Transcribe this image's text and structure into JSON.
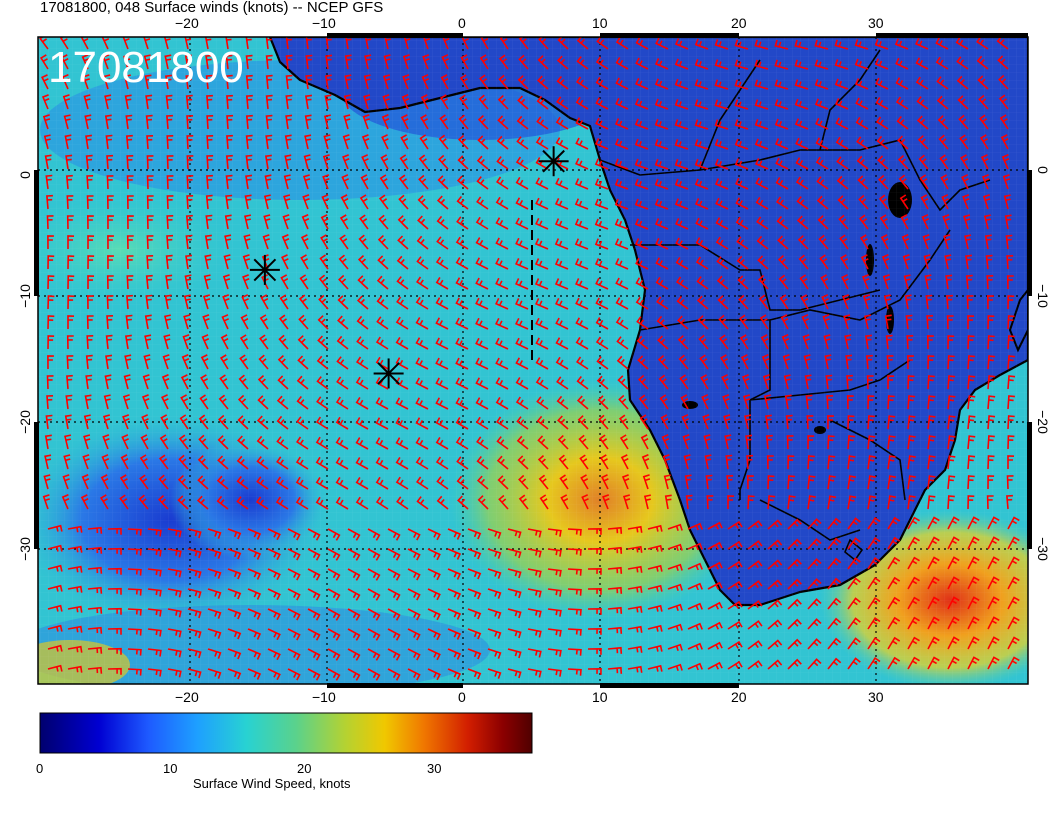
{
  "title": "17081800, 048 Surface winds (knots) -- NCEP GFS",
  "overlay_date": "17081800",
  "axes": {
    "top_ticks": [
      "−20",
      "−10",
      "0",
      "10",
      "20",
      "30"
    ],
    "bottom_ticks": [
      "−20",
      "−10",
      "0",
      "10",
      "20",
      "30"
    ],
    "left_ticks": [
      "0",
      "−10",
      "−20",
      "−30"
    ],
    "right_ticks": [
      "0",
      "−10",
      "−20",
      "−30"
    ]
  },
  "colorbar": {
    "label": "Surface Wind Speed, knots",
    "ticks": [
      "0",
      "10",
      "20",
      "30"
    ],
    "range": [
      0,
      36
    ],
    "colors": [
      "#00006e",
      "#0000d2",
      "#1e5aff",
      "#1ea0ff",
      "#28d2d2",
      "#5ad28c",
      "#b4d232",
      "#f0c800",
      "#f07800",
      "#d21e00",
      "#8c0000",
      "#500000"
    ]
  },
  "map": {
    "lon_range": [
      -31,
      41
    ],
    "lat_range": [
      -40,
      10
    ],
    "ocean_colors": {
      "calm": "#1e50d2",
      "moderate": "#32c8d2",
      "strong": "#f0d21e",
      "very_strong": "#e63c14"
    },
    "land_color": "#1e46c8",
    "barb_color": "#ff0000",
    "coastline_color": "#000000",
    "markers": [
      {
        "name": "asterisk-1",
        "lon": 6.5,
        "lat": 0.4
      },
      {
        "name": "asterisk-2",
        "lon": -14.5,
        "lat": -8
      },
      {
        "name": "asterisk-3",
        "lon": -5.5,
        "lat": -16
      }
    ]
  }
}
